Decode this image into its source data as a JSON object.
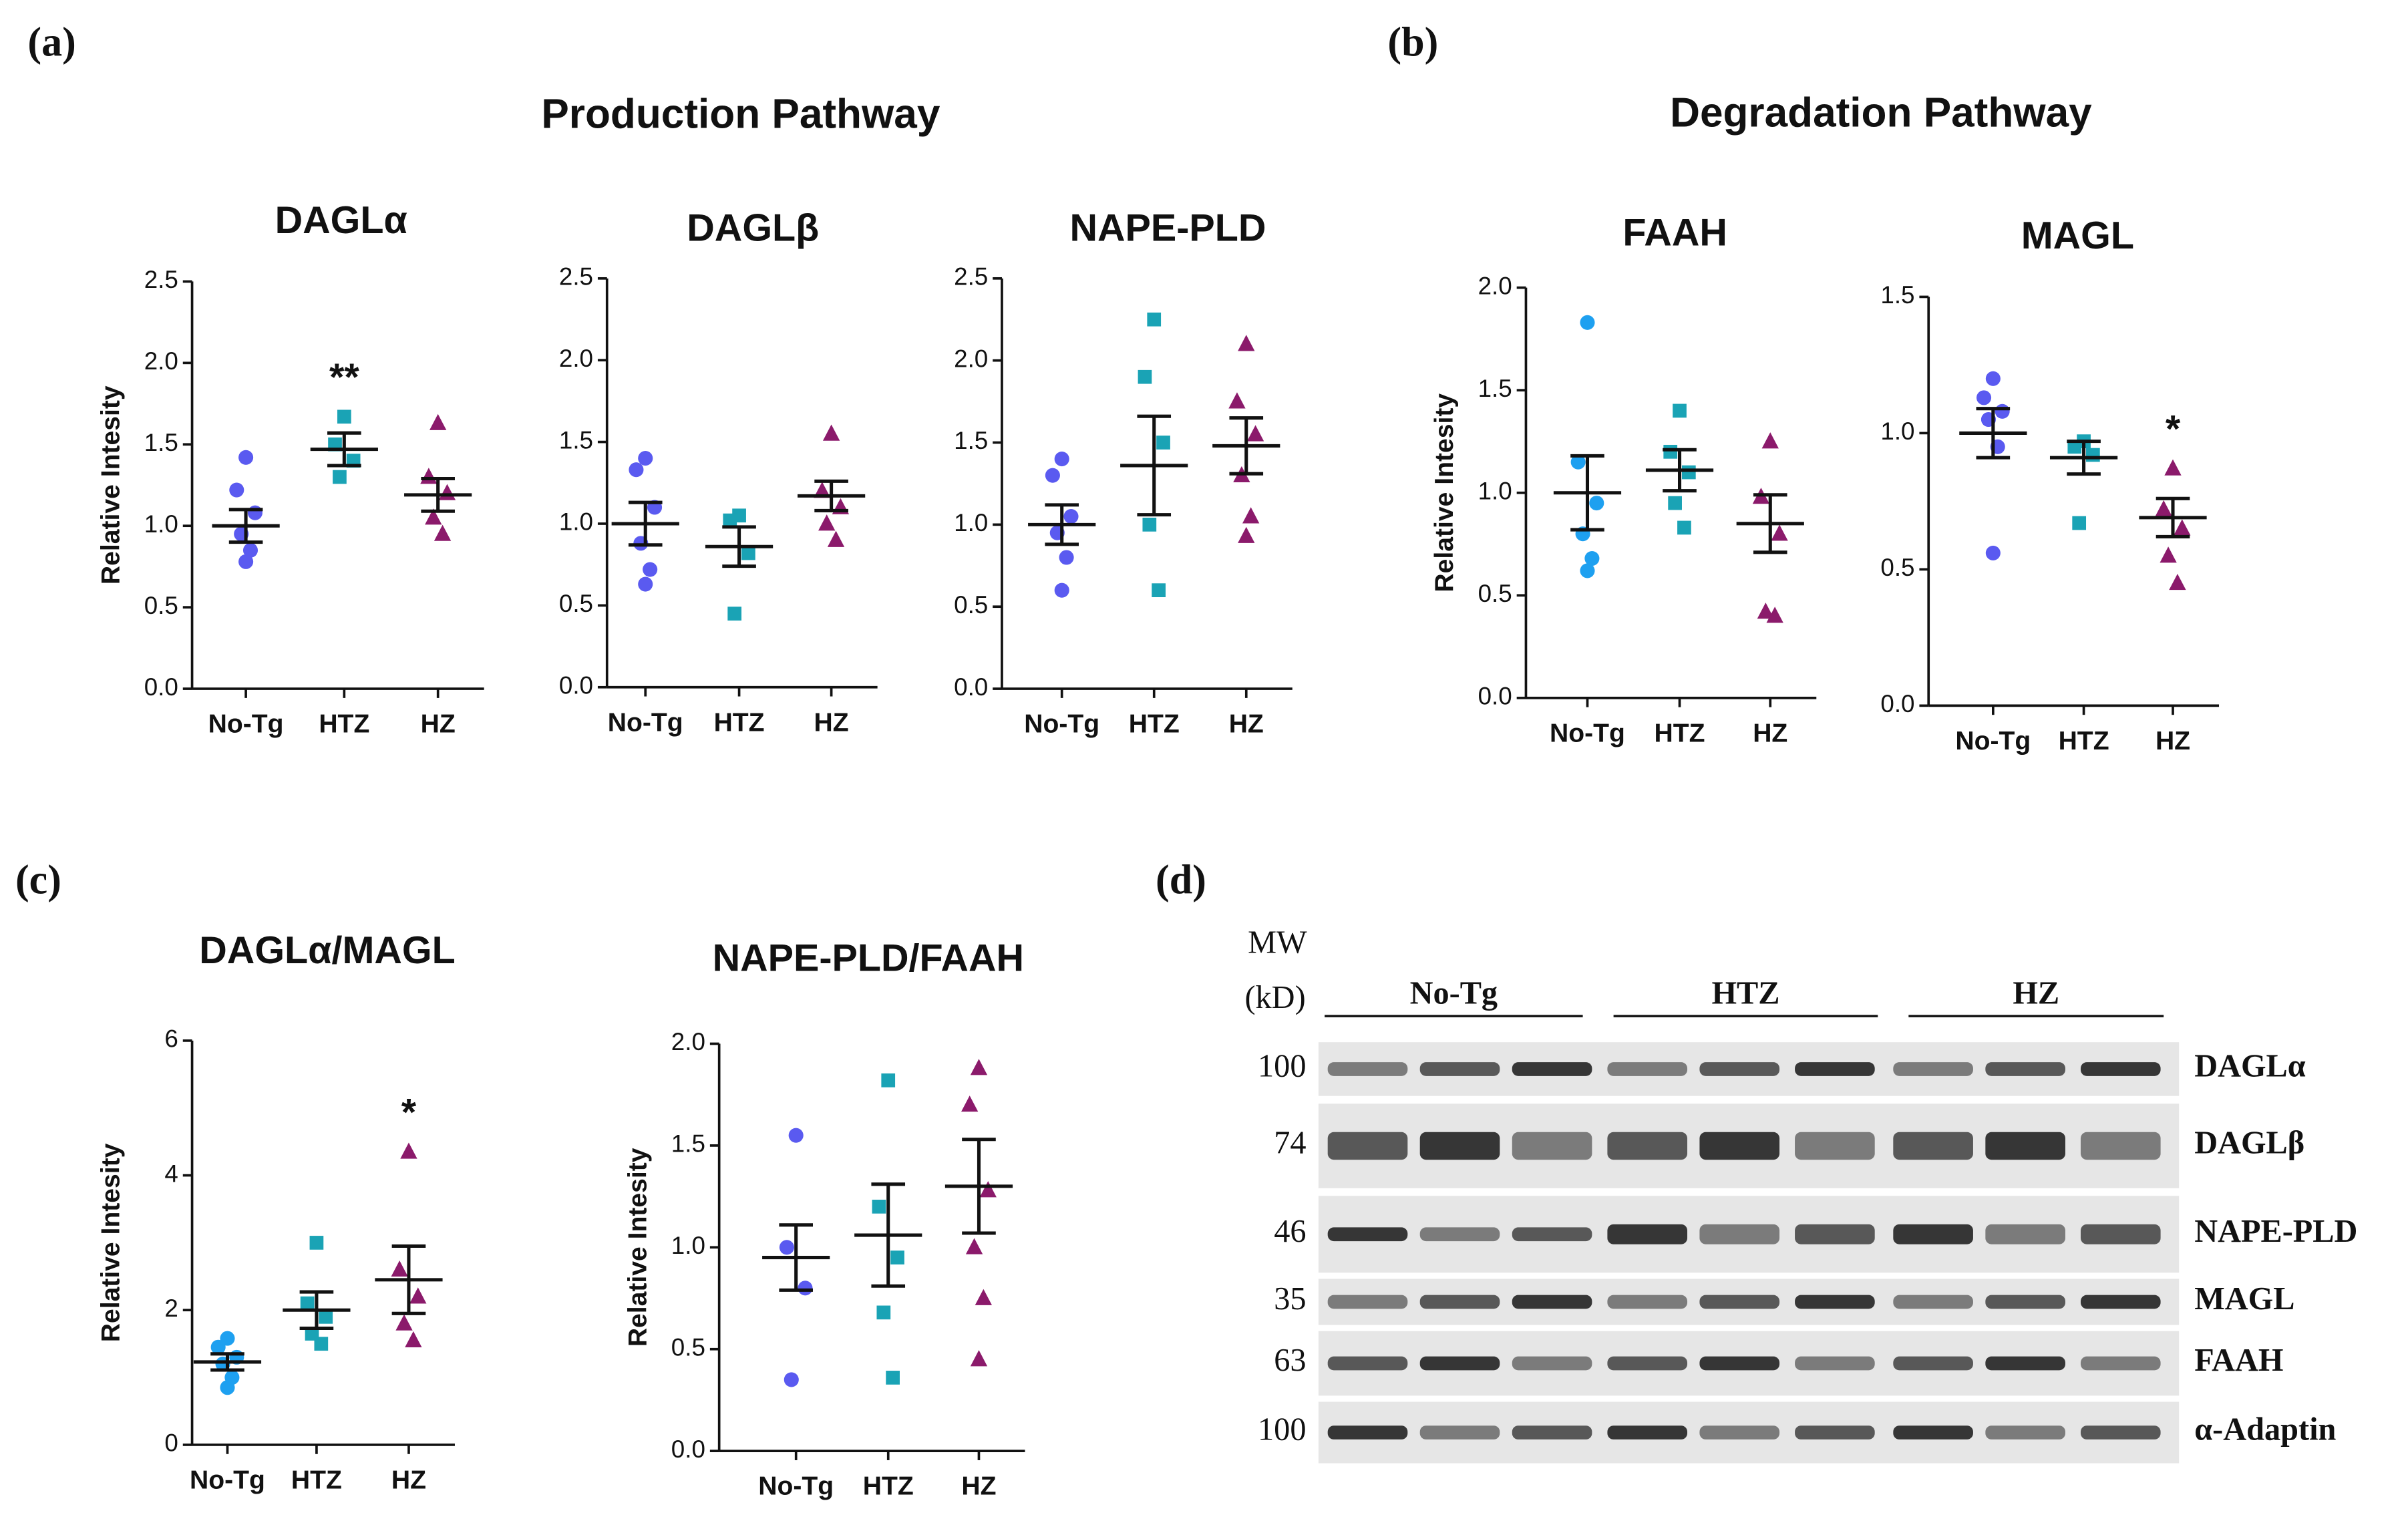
{
  "panel_labels": [
    "(a)",
    "(b)",
    "(c)",
    "(d)"
  ],
  "section_titles": [
    "Production Pathway",
    "Degradation Pathway"
  ],
  "chart_data": [
    {
      "type": "dot",
      "title": "DAGLα",
      "ylabel": "Relative Intesity",
      "ylim": [
        0,
        2.5
      ],
      "yticks": [
        {
          "value": 0,
          "label": "0.0"
        },
        {
          "value": 0.5,
          "label": "0.5"
        },
        {
          "value": 1,
          "label": "1.0"
        },
        1.5,
        {
          "value": 2,
          "label": "2.0"
        },
        2.5
      ],
      "series": [
        {
          "name": "No-Tg",
          "color": "#5a5af0",
          "marker": "circle",
          "values": [
            1.42,
            1.22,
            1.08,
            0.95,
            0.85,
            0.78
          ],
          "mean": 1.0,
          "error": 0.1
        },
        {
          "name": "HTZ",
          "color": "#1aa3b5",
          "marker": "square",
          "values": [
            1.67,
            1.5,
            1.4,
            1.3
          ],
          "mean": 1.47,
          "error": 0.1
        },
        {
          "name": "HZ",
          "color": "#8b1a6b",
          "marker": "triangle",
          "values": [
            1.63,
            1.3,
            1.2,
            1.05,
            0.95
          ],
          "mean": 1.19,
          "error": 0.1
        }
      ],
      "annotations": [
        {
          "text": "**",
          "series": "HTZ"
        }
      ]
    },
    {
      "type": "dot",
      "title": "DAGLβ",
      "ylim": [
        0,
        2.5
      ],
      "yticks": [
        {
          "value": 0,
          "label": "0.0"
        },
        {
          "value": 0.5,
          "label": "0.5"
        },
        {
          "value": 1,
          "label": "1.0"
        },
        1.5,
        {
          "value": 2,
          "label": "2.0"
        },
        2.5
      ],
      "series": [
        {
          "name": "No-Tg",
          "color": "#5a5af0",
          "marker": "circle",
          "values": [
            1.4,
            1.33,
            1.1,
            0.88,
            0.72,
            0.63
          ],
          "mean": 1.0,
          "error": 0.13
        },
        {
          "name": "HTZ",
          "color": "#1aa3b5",
          "marker": "square",
          "values": [
            1.05,
            1.02,
            0.82,
            0.45
          ],
          "mean": 0.86,
          "error": 0.12
        },
        {
          "name": "HZ",
          "color": "#8b1a6b",
          "marker": "triangle",
          "values": [
            1.55,
            1.2,
            1.1,
            1.0,
            0.9
          ],
          "mean": 1.17,
          "error": 0.09
        }
      ]
    },
    {
      "type": "dot",
      "title": "NAPE-PLD",
      "ylim": [
        0,
        2.5
      ],
      "yticks": [
        {
          "value": 0,
          "label": "0.0"
        },
        {
          "value": 0.5,
          "label": "0.5"
        },
        {
          "value": 1,
          "label": "1.0"
        },
        1.5,
        {
          "value": 2,
          "label": "2.0"
        },
        2.5
      ],
      "series": [
        {
          "name": "No-Tg",
          "color": "#5a5af0",
          "marker": "circle",
          "values": [
            1.4,
            1.3,
            1.05,
            0.95,
            0.8,
            0.6
          ],
          "mean": 1.0,
          "error": 0.12
        },
        {
          "name": "HTZ",
          "color": "#1aa3b5",
          "marker": "square",
          "values": [
            2.25,
            1.9,
            1.5,
            1.0,
            0.6
          ],
          "mean": 1.36,
          "error": 0.3
        },
        {
          "name": "HZ",
          "color": "#8b1a6b",
          "marker": "triangle",
          "values": [
            2.1,
            1.75,
            1.55,
            1.3,
            1.05,
            0.93
          ],
          "mean": 1.48,
          "error": 0.17
        }
      ]
    },
    {
      "type": "dot",
      "title": "FAAH",
      "ylabel": "Relative Intesity",
      "ylim": [
        0,
        2
      ],
      "yticks": [
        {
          "value": 0,
          "label": "0.0"
        },
        {
          "value": 0.5,
          "label": "0.5"
        },
        {
          "value": 1,
          "label": "1.0"
        },
        1.5,
        {
          "value": 2,
          "label": "2.0"
        }
      ],
      "series": [
        {
          "name": "No-Tg",
          "color": "#1ea0f0",
          "marker": "circle",
          "values": [
            1.83,
            1.15,
            0.95,
            0.8,
            0.68,
            0.62
          ],
          "mean": 1.0,
          "error": 0.18
        },
        {
          "name": "HTZ",
          "color": "#1aa3b5",
          "marker": "square",
          "values": [
            1.4,
            1.2,
            1.1,
            0.95,
            0.83
          ],
          "mean": 1.11,
          "error": 0.1
        },
        {
          "name": "HZ",
          "color": "#8b1a6b",
          "marker": "triangle",
          "values": [
            1.25,
            0.98,
            0.8,
            0.42,
            0.4
          ],
          "mean": 0.85,
          "error": 0.14
        }
      ]
    },
    {
      "type": "dot",
      "title": "MAGL",
      "ylim": [
        0,
        1.5
      ],
      "yticks": [
        {
          "value": 0,
          "label": "0.0"
        },
        {
          "value": 0.5,
          "label": "0.5"
        },
        {
          "value": 1,
          "label": "1.0"
        },
        1.5
      ],
      "series": [
        {
          "name": "No-Tg",
          "color": "#5a5af0",
          "marker": "circle",
          "values": [
            1.2,
            1.13,
            1.08,
            1.05,
            0.95,
            0.56
          ],
          "mean": 1.0,
          "error": 0.09
        },
        {
          "name": "HTZ",
          "color": "#1aa3b5",
          "marker": "square",
          "values": [
            0.97,
            0.95,
            0.92,
            0.67
          ],
          "mean": 0.91,
          "error": 0.06
        },
        {
          "name": "HZ",
          "color": "#8b1a6b",
          "marker": "triangle",
          "values": [
            0.87,
            0.72,
            0.65,
            0.55,
            0.45
          ],
          "mean": 0.69,
          "error": 0.07
        }
      ],
      "annotations": [
        {
          "text": "*",
          "series": "HZ"
        }
      ]
    },
    {
      "type": "dot",
      "title": "DAGLα/MAGL",
      "ylabel": "Relative Intesity",
      "ylim": [
        0,
        6
      ],
      "yticks": [
        0,
        2,
        4,
        6
      ],
      "series": [
        {
          "name": "No-Tg",
          "color": "#1ea0f0",
          "marker": "circle",
          "values": [
            1.58,
            1.45,
            1.3,
            1.2,
            1.0,
            0.85
          ],
          "mean": 1.23,
          "error": 0.12
        },
        {
          "name": "HTZ",
          "color": "#1aa3b5",
          "marker": "square",
          "values": [
            3.0,
            2.1,
            1.9,
            1.65,
            1.5
          ],
          "mean": 2.0,
          "error": 0.27
        },
        {
          "name": "HZ",
          "color": "#8b1a6b",
          "marker": "triangle",
          "values": [
            4.35,
            2.6,
            2.2,
            1.8,
            1.55
          ],
          "mean": 2.45,
          "error": 0.5
        }
      ],
      "annotations": [
        {
          "text": "*",
          "series": "HZ"
        }
      ]
    },
    {
      "type": "dot",
      "title": "NAPE-PLD/FAAH",
      "ylabel": "Relative Intesity",
      "ylim": [
        0,
        2
      ],
      "yticks": [
        {
          "value": 0,
          "label": "0.0"
        },
        {
          "value": 0.5,
          "label": "0.5"
        },
        {
          "value": 1,
          "label": "1.0"
        },
        1.5,
        {
          "value": 2,
          "label": "2.0"
        }
      ],
      "series": [
        {
          "name": "No-Tg",
          "color": "#5a5af0",
          "marker": "circle",
          "values": [
            1.55,
            1.0,
            0.8,
            0.35
          ],
          "mean": 0.95,
          "error": 0.16
        },
        {
          "name": "HTZ",
          "color": "#1aa3b5",
          "marker": "square",
          "values": [
            1.82,
            1.2,
            0.95,
            0.68,
            0.36
          ],
          "mean": 1.06,
          "error": 0.25
        },
        {
          "name": "HZ",
          "color": "#8b1a6b",
          "marker": "triangle",
          "values": [
            1.88,
            1.7,
            1.28,
            1.0,
            0.75,
            0.45
          ],
          "mean": 1.3,
          "error": 0.23
        }
      ]
    }
  ],
  "blot": {
    "mw_label": "MW",
    "unit_label": "(kD)",
    "groups": [
      "No-Tg",
      "HTZ",
      "HZ"
    ],
    "rows": [
      {
        "mw": 100,
        "name": "DAGLα"
      },
      {
        "mw": 74,
        "name": "DAGLβ"
      },
      {
        "mw": 46,
        "name": "NAPE-PLD"
      },
      {
        "mw": 35,
        "name": "MAGL"
      },
      {
        "mw": 63,
        "name": "FAAH"
      },
      {
        "mw": 100,
        "name": "α-Adaptin"
      }
    ]
  }
}
